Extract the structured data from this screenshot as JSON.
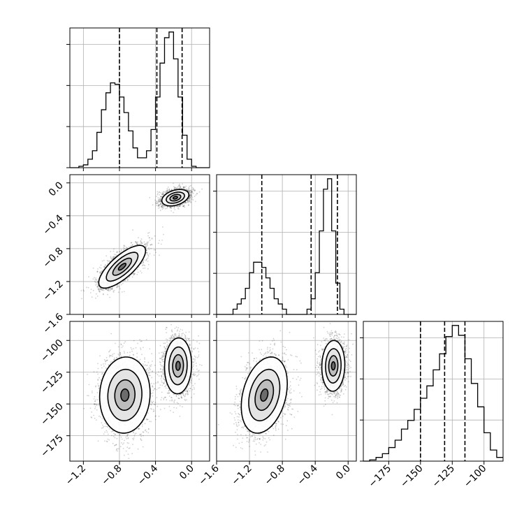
{
  "chart_data": {
    "type": "corner",
    "grid": true,
    "parameters": [
      {
        "index": 0,
        "range": [
          -1.35,
          0.2
        ],
        "quantiles": [
          -0.8,
          -0.385,
          -0.105
        ],
        "ticks": [
          -1.2,
          -0.8,
          -0.4,
          0.0
        ],
        "tick_labels": [
          "−1.2",
          "−0.8",
          "−0.4",
          "0.0"
        ]
      },
      {
        "index": 1,
        "range": [
          -1.6,
          0.1
        ],
        "quantiles": [
          -1.05,
          -0.45,
          -0.13
        ],
        "ticks": [
          -1.6,
          -1.2,
          -0.8,
          -0.4,
          0.0
        ],
        "tick_labels": [
          "−1.6",
          "−1.2",
          "−0.8",
          "−0.4",
          "0.0"
        ]
      },
      {
        "index": 2,
        "range": [
          -195,
          -85
        ],
        "quantiles": [
          -150,
          -131,
          -115
        ],
        "ticks": [
          -175,
          -150,
          -125,
          -100
        ],
        "tick_labels": [
          "−175",
          "−150",
          "−125",
          "−100"
        ]
      }
    ],
    "histograms": [
      {
        "param": 0,
        "bin_edges": [
          -1.35,
          -1.3,
          -1.25,
          -1.2,
          -1.15,
          -1.1,
          -1.05,
          -1.0,
          -0.95,
          -0.9,
          -0.85,
          -0.8,
          -0.75,
          -0.7,
          -0.65,
          -0.6,
          -0.55,
          -0.5,
          -0.45,
          -0.4,
          -0.35,
          -0.3,
          -0.25,
          -0.2,
          -0.15,
          -0.1,
          -0.05,
          0.0,
          0.05,
          0.1,
          0.15,
          0.2
        ],
        "counts": [
          0,
          0,
          1,
          2,
          6,
          12,
          25,
          41,
          53,
          60,
          59,
          50,
          39,
          26,
          14,
          7,
          7,
          12,
          27,
          50,
          74,
          92,
          96,
          77,
          50,
          23,
          6,
          1,
          0,
          0,
          0
        ]
      },
      {
        "param": 1,
        "bin_edges": [
          -1.6,
          -1.55,
          -1.5,
          -1.45,
          -1.4,
          -1.35,
          -1.3,
          -1.25,
          -1.2,
          -1.15,
          -1.1,
          -1.05,
          -1.0,
          -0.95,
          -0.9,
          -0.85,
          -0.8,
          -0.75,
          -0.7,
          -0.65,
          -0.6,
          -0.55,
          -0.5,
          -0.45,
          -0.4,
          -0.35,
          -0.3,
          -0.25,
          -0.2,
          -0.15,
          -0.1,
          -0.05,
          0.0,
          0.05,
          0.1
        ],
        "counts": [
          0,
          0,
          0,
          0,
          1,
          2,
          3,
          5,
          8,
          10,
          10,
          9,
          7,
          5,
          3,
          2,
          1,
          0,
          0,
          0,
          0,
          0,
          1,
          3,
          8,
          16,
          24,
          26,
          16,
          6,
          1,
          0,
          0,
          0
        ]
      },
      {
        "param": 2,
        "bin_edges": [
          -195,
          -190,
          -185,
          -180,
          -175,
          -170,
          -165,
          -160,
          -155,
          -150,
          -145,
          -140,
          -135,
          -130,
          -125,
          -120,
          -115,
          -110,
          -105,
          -100,
          -95,
          -90,
          -85
        ],
        "counts": [
          0,
          1,
          3,
          6,
          11,
          17,
          26,
          33,
          42,
          51,
          61,
          74,
          87,
          101,
          110,
          102,
          83,
          63,
          44,
          23,
          9,
          3
        ]
      }
    ],
    "scatter_panels": [
      {
        "x_param": 0,
        "y_param": 1,
        "clusters": [
          {
            "mean": [
              -0.77,
              -1.02
            ],
            "sd": [
              0.13,
              0.13
            ],
            "rho": 0.75,
            "weight": 0.5
          },
          {
            "mean": [
              -0.18,
              -0.18
            ],
            "sd": [
              0.075,
              0.05
            ],
            "rho": 0.35,
            "weight": 0.5
          }
        ]
      },
      {
        "x_param": 0,
        "y_param": 2,
        "clusters": [
          {
            "mean": [
              -0.74,
              -143
            ],
            "sd": [
              0.14,
              15
            ],
            "rho": 0.05,
            "weight": 0.5
          },
          {
            "mean": [
              -0.15,
              -120
            ],
            "sd": [
              0.075,
              11
            ],
            "rho": 0.05,
            "weight": 0.5
          }
        ]
      },
      {
        "x_param": 1,
        "y_param": 2,
        "clusters": [
          {
            "mean": [
              -1.02,
              -143
            ],
            "sd": [
              0.14,
              15
            ],
            "rho": 0.3,
            "weight": 0.5
          },
          {
            "mean": [
              -0.18,
              -120
            ],
            "sd": [
              0.07,
              10
            ],
            "rho": 0.05,
            "weight": 0.5
          }
        ]
      }
    ],
    "colors": {
      "line": "#000000",
      "grid": "#b0b0b0",
      "points": "#000000"
    }
  }
}
